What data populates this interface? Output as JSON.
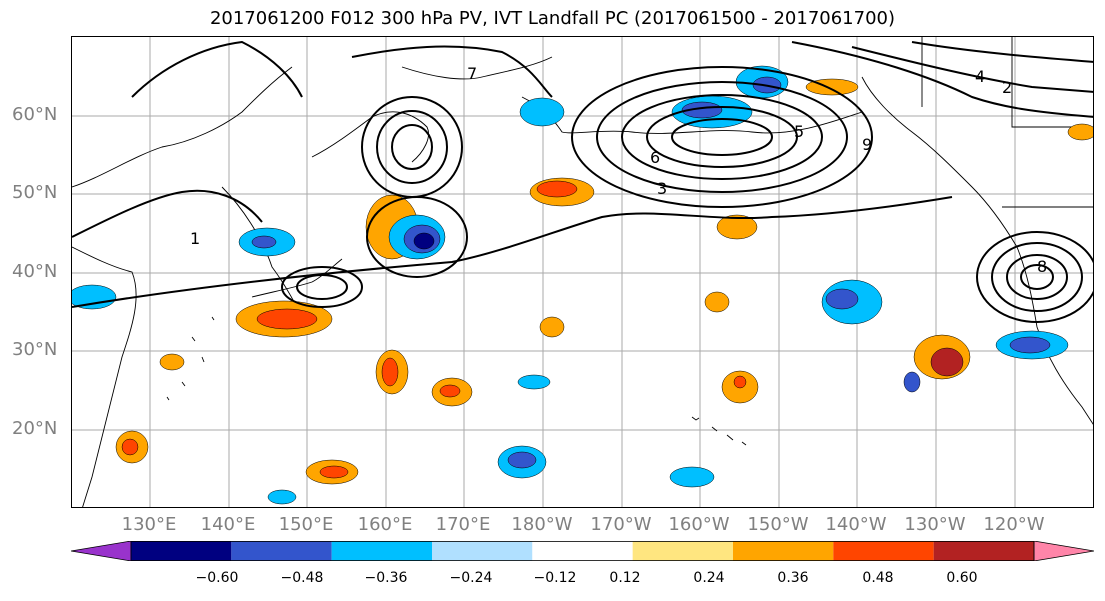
{
  "title": "2017061200 F012 300 hPa PV, IVT Landfall PC (2017061500 - 2017061700)",
  "map": {
    "lat_labels": [
      "60°N",
      "50°N",
      "40°N",
      "30°N",
      "20°N"
    ],
    "lon_labels": [
      "130°E",
      "140°E",
      "150°E",
      "160°E",
      "170°E",
      "180°W",
      "170°W",
      "160°W",
      "150°W",
      "140°W",
      "130°W",
      "120°W"
    ],
    "contour_labels": [
      "1",
      "2",
      "3",
      "4",
      "5",
      "6",
      "7",
      "8",
      "9"
    ],
    "shading_palette": [
      "#9933cc",
      "#000080",
      "#3355cc",
      "#00bfff",
      "#b0e0ff",
      "#ffffff",
      "#ffe680",
      "#ffa500",
      "#ff4500",
      "#b22222",
      "#ff85a9"
    ]
  },
  "colorbar": {
    "tick_labels": [
      "−0.60",
      "−0.48",
      "−0.36",
      "−0.24",
      "−0.12",
      "0.12",
      "0.24",
      "0.36",
      "0.48",
      "0.60"
    ],
    "colors": [
      "#9933cc",
      "#000080",
      "#3355cc",
      "#00bfff",
      "#b0e0ff",
      "#ffffff",
      "#ffe680",
      "#ffa500",
      "#ff4500",
      "#b22222",
      "#ff85a9"
    ]
  }
}
